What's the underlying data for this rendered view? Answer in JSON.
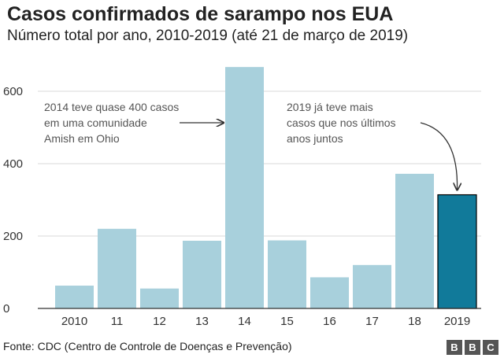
{
  "header": {
    "title": "Casos confirmados de sarampo nos EUA",
    "subtitle": "Número total por ano, 2010-2019 (até 21 de março de 2019)"
  },
  "footer": {
    "source": "Fonte: CDC (Centro de Controle de Doenças e Prevenção)",
    "logo_letters": [
      "B",
      "B",
      "C"
    ]
  },
  "chart_data": {
    "type": "bar",
    "categories": [
      "2010",
      "11",
      "12",
      "13",
      "14",
      "15",
      "16",
      "17",
      "18",
      "2019"
    ],
    "values": [
      63,
      220,
      55,
      187,
      667,
      188,
      86,
      120,
      372,
      314
    ],
    "ylim": [
      0,
      650
    ],
    "yticks": [
      0,
      200,
      400,
      600
    ],
    "grid": true,
    "bar_color": "#a8d0dc",
    "highlight_color": "#117a9a",
    "highlight_index": 9,
    "annotations": [
      {
        "lines": [
          "2014 teve quase 400 casos",
          "em uma comunidade",
          "Amish em Ohio"
        ],
        "target": "14"
      },
      {
        "lines": [
          "2019 já teve mais",
          "casos que nos últimos",
          "anos juntos"
        ],
        "target": "2019"
      }
    ]
  }
}
